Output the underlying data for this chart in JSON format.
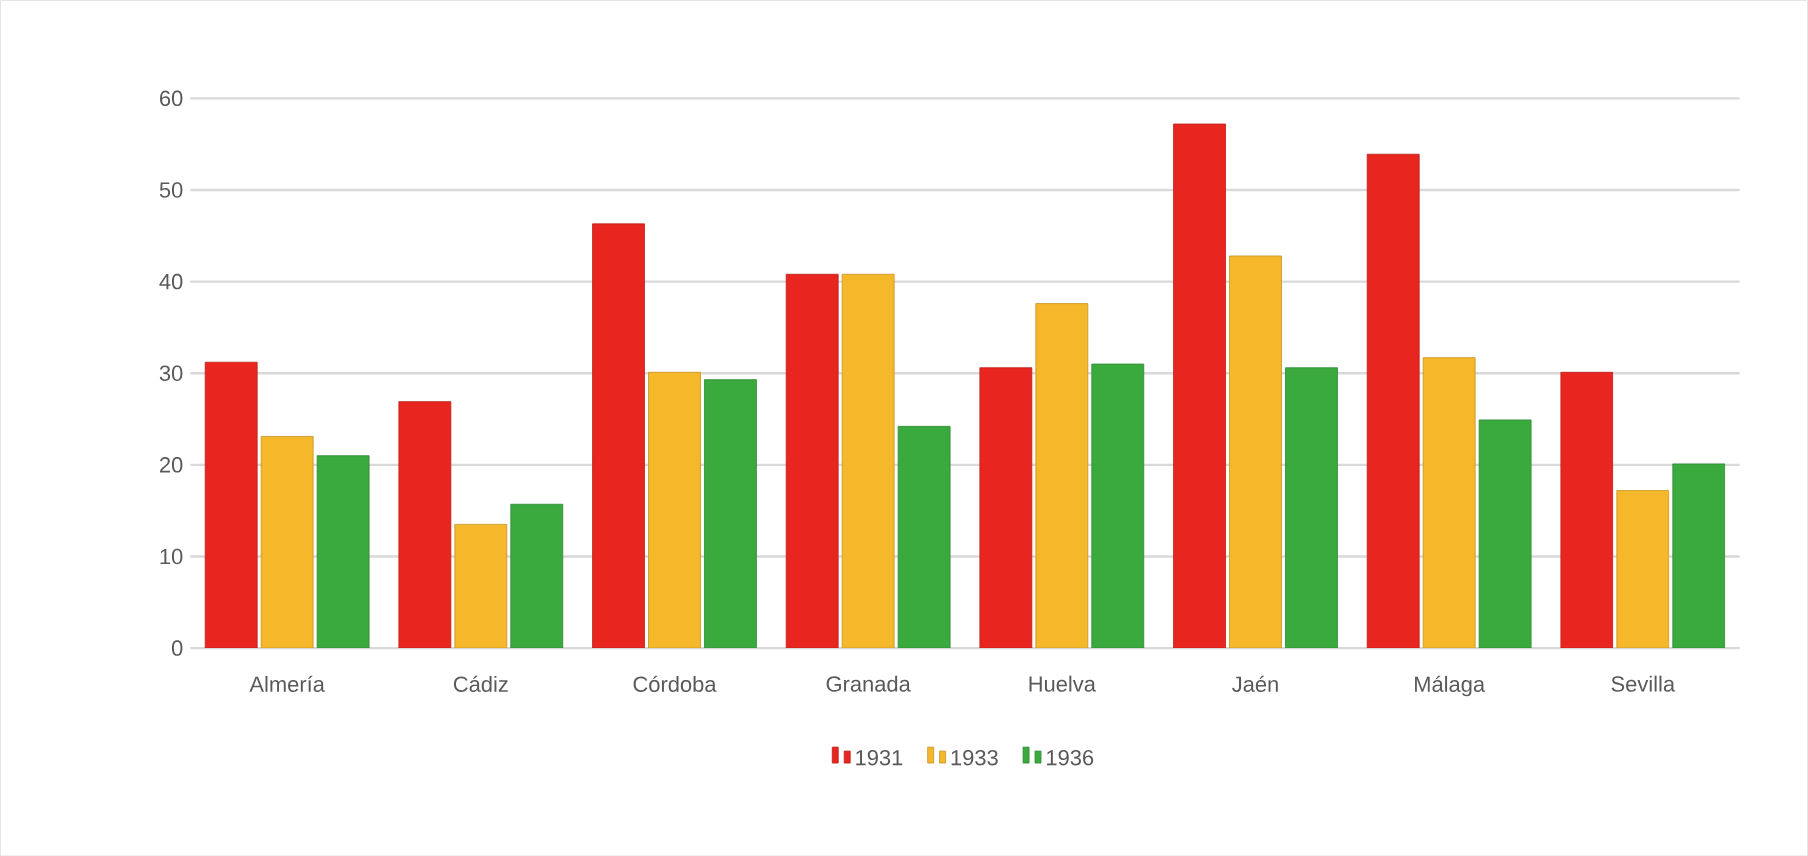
{
  "chart_data": {
    "type": "bar",
    "categories": [
      "Almería",
      "Cádiz",
      "Córdoba",
      "Granada",
      "Huelva",
      "Jaén",
      "Málaga",
      "Sevilla"
    ],
    "series": [
      {
        "name": "1931",
        "color": "#e8261f",
        "values": [
          31.2,
          26.9,
          46.3,
          40.8,
          30.6,
          57.2,
          53.9,
          30.1
        ]
      },
      {
        "name": "1933",
        "color": "#f5b82a",
        "values": [
          23.1,
          13.5,
          30.1,
          40.8,
          37.6,
          42.8,
          31.7,
          17.2
        ]
      },
      {
        "name": "1936",
        "color": "#3aaa3e",
        "values": [
          21,
          15.7,
          29.3,
          24.2,
          31,
          30.6,
          24.9,
          20.1
        ]
      }
    ],
    "ylim": [
      0,
      60
    ],
    "yticks": [
      0,
      10,
      20,
      30,
      40,
      50,
      60
    ],
    "grid": "y",
    "legend": "bottom"
  }
}
